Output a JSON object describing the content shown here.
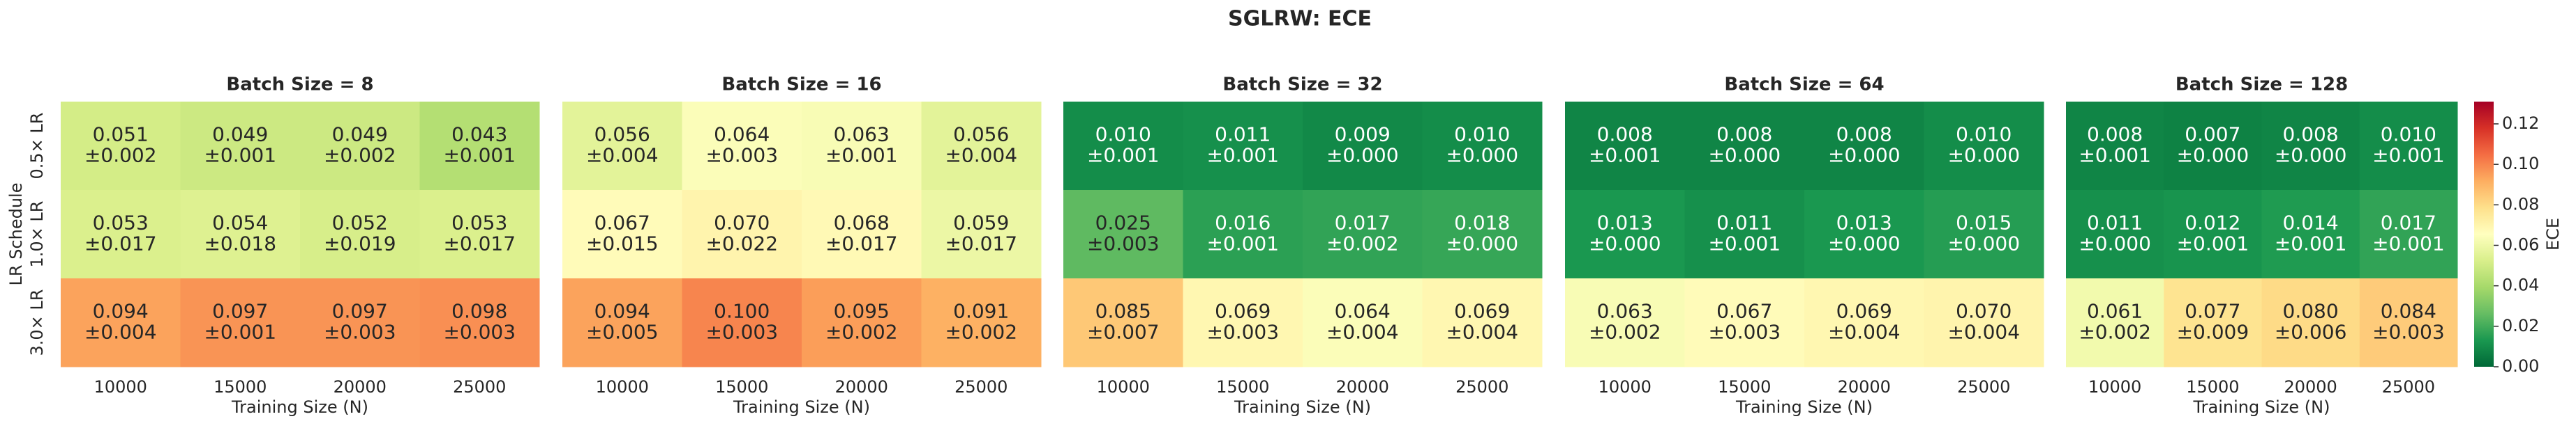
{
  "title": "SGLRW: ECE",
  "colorbar": {
    "label": "ECE",
    "colormap": "RdYlGn_r",
    "lim": [
      0,
      0.131
    ],
    "ticks": [
      {
        "value": 0,
        "label": "0.00"
      },
      0.02,
      0.04,
      0.06,
      0.08,
      {
        "value": 0.1,
        "label": "0.10"
      },
      0.12
    ]
  },
  "chart_data": [
    {
      "type": "heatmap",
      "title": "Batch Size = 8",
      "x_label": "Training Size (N)",
      "y_label": "LR Schedule",
      "x": [
        "10000",
        "15000",
        "20000",
        "25000"
      ],
      "y": [
        "0.5× LR",
        "1.0× LR",
        "3.0× LR"
      ],
      "values": [
        [
          0.051,
          0.049,
          0.049,
          0.043
        ],
        [
          0.053,
          0.054,
          0.052,
          0.053
        ],
        [
          0.094,
          0.097,
          0.097,
          0.098
        ]
      ],
      "value_labels": [
        [
          "0.051",
          "0.049",
          "0.049",
          "0.043"
        ],
        [
          "0.053",
          "0.054",
          "0.052",
          "0.053"
        ],
        [
          "0.094",
          "0.097",
          "0.097",
          "0.098"
        ]
      ],
      "errors": [
        [
          0.002,
          0.001,
          0.002,
          0.001
        ],
        [
          0.017,
          0.018,
          0.019,
          0.017
        ],
        [
          0.004,
          0.001,
          0.003,
          0.003
        ]
      ],
      "error_labels": [
        [
          "±0.002",
          "±0.001",
          "±0.002",
          "±0.001"
        ],
        [
          "±0.017",
          "±0.018",
          "±0.019",
          "±0.017"
        ],
        [
          "±0.004",
          "±0.001",
          "±0.003",
          "±0.003"
        ]
      ]
    },
    {
      "type": "heatmap",
      "title": "Batch Size = 16",
      "x_label": "Training Size (N)",
      "x": [
        "10000",
        "15000",
        "20000",
        "25000"
      ],
      "values": [
        [
          0.056,
          0.064,
          0.063,
          0.056
        ],
        [
          0.067,
          0.07,
          0.068,
          0.059
        ],
        [
          0.094,
          0.1,
          0.095,
          0.091
        ]
      ],
      "value_labels": [
        [
          "0.056",
          "0.064",
          "0.063",
          "0.056"
        ],
        [
          "0.067",
          "0.070",
          "0.068",
          "0.059"
        ],
        [
          "0.094",
          "0.100",
          "0.095",
          "0.091"
        ]
      ],
      "errors": [
        [
          0.004,
          0.003,
          0.001,
          0.004
        ],
        [
          0.015,
          0.022,
          0.017,
          0.017
        ],
        [
          0.005,
          0.003,
          0.002,
          0.002
        ]
      ],
      "error_labels": [
        [
          "±0.004",
          "±0.003",
          "±0.001",
          "±0.004"
        ],
        [
          "±0.015",
          "±0.022",
          "±0.017",
          "±0.017"
        ],
        [
          "±0.005",
          "±0.003",
          "±0.002",
          "±0.002"
        ]
      ]
    },
    {
      "type": "heatmap",
      "title": "Batch Size = 32",
      "x_label": "Training Size (N)",
      "x": [
        "10000",
        "15000",
        "20000",
        "25000"
      ],
      "values": [
        [
          0.01,
          0.011,
          0.009,
          0.01
        ],
        [
          0.025,
          0.016,
          0.017,
          0.018
        ],
        [
          0.085,
          0.069,
          0.064,
          0.069
        ]
      ],
      "value_labels": [
        [
          "0.010",
          "0.011",
          "0.009",
          "0.010"
        ],
        [
          "0.025",
          "0.016",
          "0.017",
          "0.018"
        ],
        [
          "0.085",
          "0.069",
          "0.064",
          "0.069"
        ]
      ],
      "errors": [
        [
          0.001,
          0.001,
          0.0,
          0.0
        ],
        [
          0.003,
          0.001,
          0.002,
          0.0
        ],
        [
          0.007,
          0.003,
          0.004,
          0.004
        ]
      ],
      "error_labels": [
        [
          "±0.001",
          "±0.001",
          "±0.000",
          "±0.000"
        ],
        [
          "±0.003",
          "±0.001",
          "±0.002",
          "±0.000"
        ],
        [
          "±0.007",
          "±0.003",
          "±0.004",
          "±0.004"
        ]
      ]
    },
    {
      "type": "heatmap",
      "title": "Batch Size = 64",
      "x_label": "Training Size (N)",
      "x": [
        "10000",
        "15000",
        "20000",
        "25000"
      ],
      "values": [
        [
          0.008,
          0.008,
          0.008,
          0.01
        ],
        [
          0.013,
          0.011,
          0.013,
          0.015
        ],
        [
          0.063,
          0.067,
          0.069,
          0.07
        ]
      ],
      "value_labels": [
        [
          "0.008",
          "0.008",
          "0.008",
          "0.010"
        ],
        [
          "0.013",
          "0.011",
          "0.013",
          "0.015"
        ],
        [
          "0.063",
          "0.067",
          "0.069",
          "0.070"
        ]
      ],
      "errors": [
        [
          0.001,
          0.0,
          0.0,
          0.0
        ],
        [
          0.0,
          0.001,
          0.0,
          0.0
        ],
        [
          0.002,
          0.003,
          0.004,
          0.004
        ]
      ],
      "error_labels": [
        [
          "±0.001",
          "±0.000",
          "±0.000",
          "±0.000"
        ],
        [
          "±0.000",
          "±0.001",
          "±0.000",
          "±0.000"
        ],
        [
          "±0.002",
          "±0.003",
          "±0.004",
          "±0.004"
        ]
      ]
    },
    {
      "type": "heatmap",
      "title": "Batch Size = 128",
      "x_label": "Training Size (N)",
      "x": [
        "10000",
        "15000",
        "20000",
        "25000"
      ],
      "values": [
        [
          0.008,
          0.007,
          0.008,
          0.01
        ],
        [
          0.011,
          0.012,
          0.014,
          0.017
        ],
        [
          0.061,
          0.077,
          0.08,
          0.084
        ]
      ],
      "value_labels": [
        [
          "0.008",
          "0.007",
          "0.008",
          "0.010"
        ],
        [
          "0.011",
          "0.012",
          "0.014",
          "0.017"
        ],
        [
          "0.061",
          "0.077",
          "0.080",
          "0.084"
        ]
      ],
      "errors": [
        [
          0.001,
          0.0,
          0.0,
          0.001
        ],
        [
          0.0,
          0.001,
          0.001,
          0.001
        ],
        [
          0.002,
          0.009,
          0.006,
          0.003
        ]
      ],
      "error_labels": [
        [
          "±0.001",
          "±0.000",
          "±0.000",
          "±0.001"
        ],
        [
          "±0.000",
          "±0.001",
          "±0.001",
          "±0.001"
        ],
        [
          "±0.002",
          "±0.009",
          "±0.006",
          "±0.003"
        ]
      ]
    }
  ]
}
